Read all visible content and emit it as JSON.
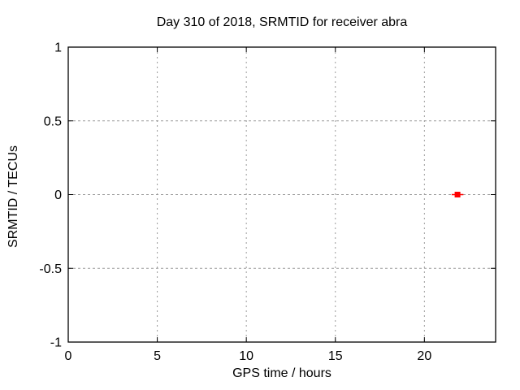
{
  "chart_data": {
    "type": "scatter",
    "title": "Day 310 of 2018, SRMTID for receiver abra",
    "xlabel": "GPS time / hours",
    "ylabel": "SRMTID / TECUs",
    "xlim": [
      0,
      24
    ],
    "ylim": [
      -1,
      1
    ],
    "xticks": [
      0,
      5,
      10,
      15,
      20
    ],
    "yticks": [
      -1,
      -0.5,
      0,
      0.5,
      1
    ],
    "grid": true,
    "legend": "none",
    "colors": {
      "marker": "#ff0000",
      "grid": "#9a9a9a",
      "axis": "#000000",
      "background": "#ffffff"
    },
    "series": [
      {
        "name": "SRMTID",
        "marker": "filled-square",
        "color": "#ff0000",
        "points": [
          {
            "x": 21.86,
            "y": 0.0,
            "xerr": 0.33
          }
        ]
      }
    ]
  }
}
